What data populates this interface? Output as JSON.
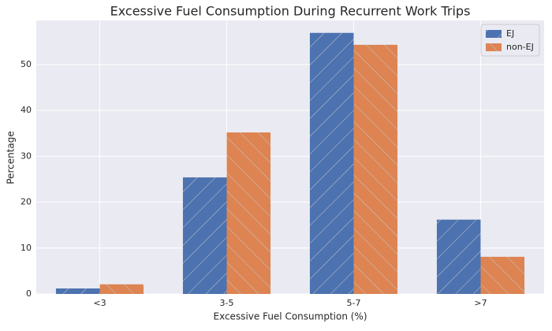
{
  "chart_data": {
    "type": "bar",
    "title": "Excessive Fuel Consumption During Recurrent Work Trips",
    "x_label": "Excessive Fuel Consumption (%)",
    "y_label": "Percentage",
    "categories": [
      "<3",
      "3-5",
      "5-7",
      ">7"
    ],
    "series": [
      {
        "name": "EJ",
        "color": "#4c72b0",
        "hatch": "/",
        "values": [
          1.2,
          25.4,
          56.9,
          16.2
        ]
      },
      {
        "name": "non-EJ",
        "color": "#dd8452",
        "hatch": "\\",
        "values": [
          2.1,
          35.2,
          54.3,
          8.1
        ]
      }
    ],
    "ylim": [
      0,
      59.6
    ],
    "yticks": [
      0,
      10,
      20,
      30,
      40,
      50
    ],
    "grid": true,
    "legend": "upper right"
  }
}
